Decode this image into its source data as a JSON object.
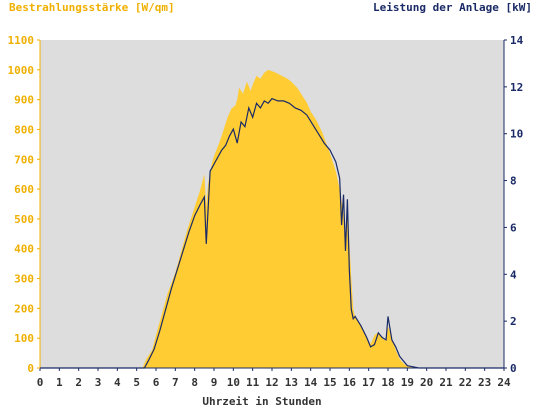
{
  "chart_data": {
    "type": "area",
    "left_axis_label": "Bestrahlungsstärke [W/qm]",
    "right_axis_label": "Leistung der Anlage [kW]",
    "xlabel": "Uhrzeit in Stunden",
    "x_ticks": [
      "0",
      "1",
      "2",
      "3",
      "4",
      "5",
      "6",
      "7",
      "8",
      "9",
      "10",
      "11",
      "12",
      "13",
      "14",
      "15",
      "16",
      "17",
      "18",
      "19",
      "20",
      "21",
      "22",
      "23",
      "24"
    ],
    "y_left_ticks": [
      "0",
      "100",
      "200",
      "300",
      "400",
      "500",
      "600",
      "700",
      "800",
      "900",
      "1000",
      "1100"
    ],
    "y_right_ticks": [
      "0",
      "2",
      "4",
      "6",
      "8",
      "10",
      "12",
      "14"
    ],
    "xlim": [
      0,
      24
    ],
    "ylim_left": [
      0,
      1100
    ],
    "ylim_right": [
      0,
      14
    ],
    "grid": false,
    "colors": {
      "irradiance": "#ffcc33",
      "power": "#1a2a66",
      "plot_bg": "#dddddd",
      "left_axis_text": "#f0b000",
      "right_axis_text": "#1a2a66"
    },
    "series": [
      {
        "x": [
          0,
          5.3,
          5.5,
          5.8,
          6,
          6.3,
          6.6,
          7,
          7.3,
          7.6,
          8,
          8.3,
          8.5,
          8.6,
          8.7,
          8.9,
          9,
          9.3,
          9.5,
          9.7,
          9.9,
          10.1,
          10.2,
          10.3,
          10.5,
          10.7,
          10.9,
          11,
          11.2,
          11.4,
          11.6,
          11.8,
          12,
          12.2,
          12.5,
          12.8,
          13,
          13.3,
          13.5,
          13.8,
          14,
          14.3,
          14.6,
          15,
          15.3,
          15.5,
          15.7,
          15.8,
          15.9,
          16,
          16.1,
          16.2,
          16.3,
          16.6,
          16.9,
          17.1,
          17.3,
          17.5,
          17.7,
          17.9,
          18,
          18.2,
          18.4,
          18.6,
          18.8,
          19,
          19.3,
          19.6,
          20,
          24
        ],
        "values": [
          0,
          0,
          30,
          60,
          110,
          180,
          250,
          320,
          390,
          460,
          540,
          600,
          650,
          540,
          620,
          690,
          710,
          760,
          800,
          840,
          870,
          880,
          900,
          940,
          920,
          960,
          930,
          950,
          980,
          970,
          990,
          1000,
          995,
          990,
          980,
          970,
          960,
          940,
          920,
          890,
          860,
          830,
          790,
          720,
          660,
          600,
          520,
          380,
          560,
          430,
          300,
          200,
          170,
          140,
          100,
          80,
          110,
          120,
          100,
          90,
          140,
          100,
          60,
          30,
          15,
          5,
          2,
          0,
          0,
          0
        ]
      },
      {
        "x": [
          0,
          5.4,
          5.6,
          5.9,
          6.2,
          6.5,
          6.8,
          7.1,
          7.4,
          7.7,
          8,
          8.3,
          8.5,
          8.6,
          8.8,
          9,
          9.2,
          9.4,
          9.6,
          9.8,
          10,
          10.2,
          10.4,
          10.6,
          10.8,
          11,
          11.2,
          11.4,
          11.6,
          11.8,
          12,
          12.3,
          12.6,
          12.9,
          13.2,
          13.5,
          13.8,
          14.1,
          14.4,
          14.7,
          15,
          15.3,
          15.5,
          15.6,
          15.7,
          15.8,
          15.9,
          16,
          16.1,
          16.2,
          16.3,
          16.6,
          16.9,
          17.1,
          17.3,
          17.5,
          17.7,
          17.9,
          18,
          18.2,
          18.4,
          18.6,
          18.8,
          19,
          19.3,
          19.6,
          20,
          24
        ],
        "values": [
          0,
          0,
          0.3,
          0.8,
          1.6,
          2.5,
          3.4,
          4.2,
          5.0,
          5.8,
          6.5,
          7.0,
          7.3,
          5.3,
          8.4,
          8.7,
          9.0,
          9.3,
          9.5,
          9.9,
          10.2,
          9.6,
          10.5,
          10.3,
          11.1,
          10.7,
          11.3,
          11.1,
          11.4,
          11.3,
          11.5,
          11.4,
          11.4,
          11.3,
          11.1,
          11.0,
          10.8,
          10.4,
          10.0,
          9.6,
          9.3,
          8.8,
          8.1,
          6.1,
          7.4,
          5.0,
          7.2,
          4.2,
          2.5,
          2.1,
          2.2,
          1.8,
          1.3,
          0.9,
          1.0,
          1.5,
          1.3,
          1.2,
          2.2,
          1.2,
          0.9,
          0.5,
          0.3,
          0.1,
          0.05,
          0,
          0,
          0
        ]
      }
    ]
  }
}
